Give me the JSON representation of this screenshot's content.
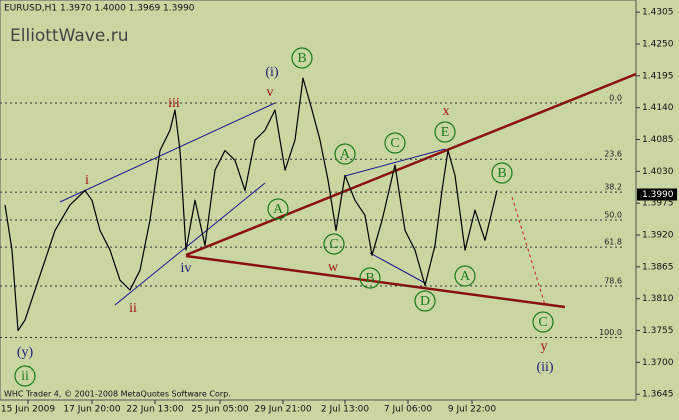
{
  "chart_data": {
    "type": "line",
    "title": "EURUSD,H1  1.3970 1.4000 1.3969 1.3990",
    "watermark": "ElliottWave.ru",
    "footer": "WHC Trader 4, © 2001-2008 MetaQuotes Software Corp.",
    "color": "#000000",
    "background": "#c9d6a2",
    "xlim": [
      0,
      636
    ],
    "ylim": [
      1.3635,
      1.4326
    ],
    "xticks": [
      {
        "value": 28,
        "label": "15 Jun 2009"
      },
      {
        "value": 92,
        "label": "17 Jun 20:00"
      },
      {
        "value": 155,
        "label": "22 Jun 13:00"
      },
      {
        "value": 220,
        "label": "25 Jun 05:00"
      },
      {
        "value": 283,
        "label": "29 Jun 21:00"
      },
      {
        "value": 345,
        "label": "2 Jul 13:00"
      },
      {
        "value": 408,
        "label": "7 Jul 06:00"
      },
      {
        "value": 472,
        "label": "9 Jul 22:00"
      }
    ],
    "yticks": [
      1.4305,
      {
        "value": 1.425,
        "label": "1.4250"
      },
      1.4195,
      {
        "value": 1.414,
        "label": "1.4140"
      },
      1.4085,
      {
        "value": 1.403,
        "label": "1.4030"
      },
      1.3975,
      {
        "value": 1.392,
        "label": "1.3920"
      },
      1.3865,
      {
        "value": 1.381,
        "label": "1.3810"
      },
      1.3755,
      {
        "value": 1.37,
        "label": "1.3700"
      },
      1.3645
    ],
    "x": [
      5,
      12,
      18,
      25,
      35,
      45,
      55,
      70,
      85,
      92,
      100,
      110,
      120,
      130,
      140,
      150,
      160,
      170,
      175,
      180,
      186,
      195,
      205,
      215,
      225,
      235,
      245,
      255,
      265,
      275,
      285,
      295,
      303,
      312,
      320,
      328,
      336,
      345,
      355,
      365,
      372,
      382,
      395,
      405,
      415,
      425,
      435,
      442,
      448,
      455,
      465,
      475,
      485,
      497
    ],
    "values": [
      1.3972,
      1.3894,
      1.3755,
      1.3773,
      1.3825,
      1.3876,
      1.3928,
      1.3972,
      1.3997,
      1.398,
      1.3928,
      1.3894,
      1.3842,
      1.3825,
      1.3859,
      1.3946,
      1.4066,
      1.4101,
      1.4136,
      1.4066,
      1.3894,
      1.398,
      1.3902,
      1.4032,
      1.4066,
      1.4049,
      1.3997,
      1.4084,
      1.4101,
      1.4136,
      1.4032,
      1.4084,
      1.4191,
      1.4136,
      1.4084,
      1.4015,
      1.3928,
      1.4023,
      1.398,
      1.3954,
      1.3885,
      1.3945,
      1.4041,
      1.3928,
      1.3894,
      1.3833,
      1.3902,
      1.3997,
      1.4066,
      1.4023,
      1.3894,
      1.3963,
      1.3911,
      1.3997
    ],
    "last_price": {
      "value": 1.399,
      "label": "1.3990"
    },
    "fib_levels": [
      {
        "level": "0.0",
        "price": 1.4148
      },
      {
        "level": "23.6",
        "price": 1.4051
      },
      {
        "level": "38.2",
        "price": 1.3994
      },
      {
        "level": "50.0",
        "price": 1.3946
      },
      {
        "level": "61.8",
        "price": 1.3899
      },
      {
        "level": "78.6",
        "price": 1.3832
      },
      {
        "level": "100.0",
        "price": 1.3743
      }
    ],
    "wave_labels": [
      {
        "text": "(y)",
        "color": "#1a1a80",
        "circled": false
      },
      {
        "text": "ii",
        "color": "#1a7a1a",
        "circled": true
      },
      {
        "text": "i",
        "color": "#a01010",
        "circled": false
      },
      {
        "text": "ii",
        "color": "#a01010",
        "circled": false
      },
      {
        "text": "iii",
        "color": "#a01010",
        "circled": false
      },
      {
        "text": "iv",
        "color": "#1a1a80",
        "circled": false
      },
      {
        "text": "v",
        "color": "#a01010",
        "circled": false
      },
      {
        "text": "(i)",
        "color": "#1a1a80",
        "circled": false
      },
      {
        "text": "B",
        "color": "#1a7a1a",
        "circled": true
      },
      {
        "text": "A",
        "color": "#1a7a1a",
        "circled": true
      },
      {
        "text": "A",
        "color": "#1a7a1a",
        "circled": true
      },
      {
        "text": "C",
        "color": "#1a7a1a",
        "circled": true
      },
      {
        "text": "w",
        "color": "#a01010",
        "circled": false
      },
      {
        "text": "B",
        "color": "#1a7a1a",
        "circled": true
      },
      {
        "text": "C",
        "color": "#1a7a1a",
        "circled": true
      },
      {
        "text": "x",
        "color": "#a01010",
        "circled": false
      },
      {
        "text": "E",
        "color": "#1a7a1a",
        "circled": true
      },
      {
        "text": "D",
        "color": "#1a7a1a",
        "circled": true
      },
      {
        "text": "A",
        "color": "#1a7a1a",
        "circled": true
      },
      {
        "text": "B",
        "color": "#1a7a1a",
        "circled": true
      },
      {
        "text": "C",
        "color": "#1a7a1a",
        "circled": true
      },
      {
        "text": "y",
        "color": "#a01010",
        "circled": false
      },
      {
        "text": "(ii)",
        "color": "#1a1a80",
        "circled": false
      }
    ]
  }
}
